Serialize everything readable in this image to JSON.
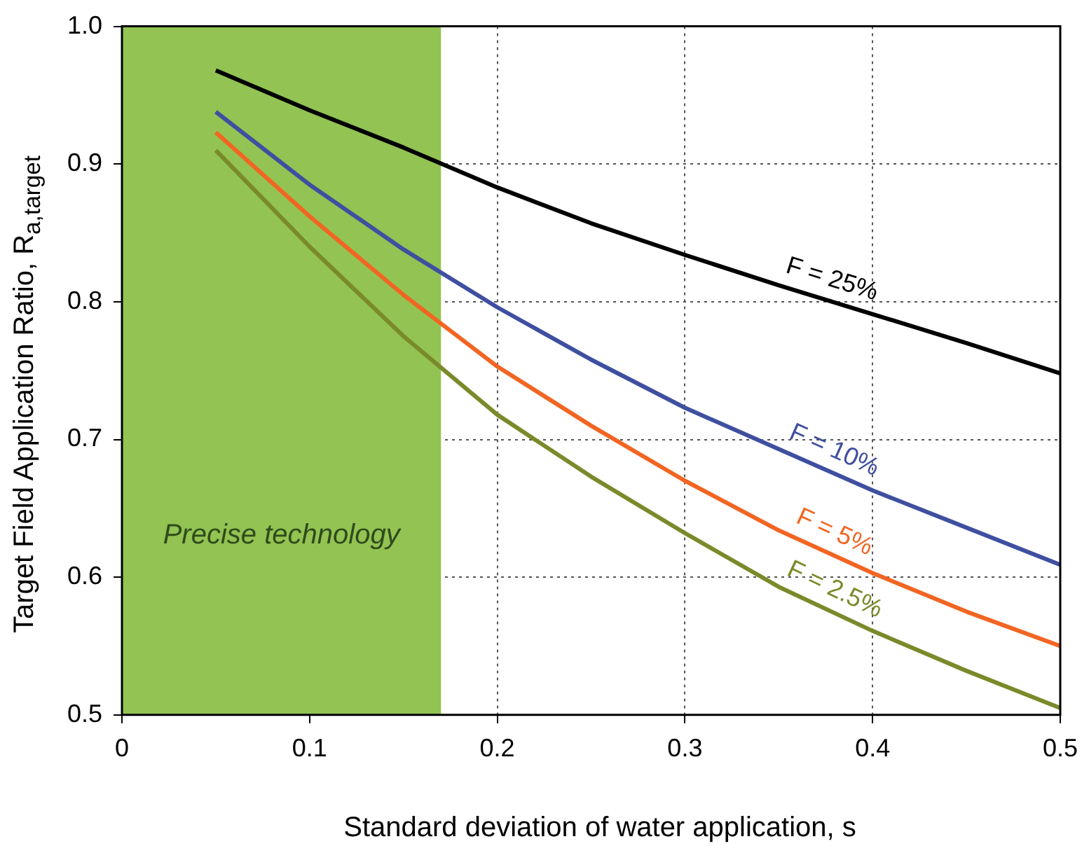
{
  "chart_data": {
    "type": "line",
    "xlabel": "Standard deviation of water application, s",
    "ylabel": "Target Field Application Ratio, R$_{a,target}$",
    "x": [
      0.05,
      0.1,
      0.15,
      0.2,
      0.25,
      0.3,
      0.35,
      0.4,
      0.45,
      0.5
    ],
    "series": [
      {
        "name": "F = 25%",
        "color": "#000000",
        "values": [
          0.968,
          0.939,
          0.912,
          0.883,
          0.857,
          0.834,
          0.812,
          0.791,
          0.77,
          0.748
        ]
      },
      {
        "name": "F = 10%",
        "color": "#3f4fa0",
        "values": [
          0.938,
          0.885,
          0.838,
          0.796,
          0.758,
          0.723,
          0.693,
          0.663,
          0.636,
          0.609
        ]
      },
      {
        "name": "F = 5%",
        "color": "#f26522",
        "values": [
          0.923,
          0.862,
          0.805,
          0.753,
          0.71,
          0.67,
          0.634,
          0.603,
          0.575,
          0.55
        ]
      },
      {
        "name": "F = 2.5%",
        "color": "#7a8a2a",
        "values": [
          0.91,
          0.84,
          0.775,
          0.718,
          0.673,
          0.632,
          0.593,
          0.561,
          0.532,
          0.505
        ]
      }
    ],
    "xlim": [
      0,
      0.5
    ],
    "xticks": [
      0,
      0.1,
      0.2,
      0.3,
      0.4,
      0.5
    ],
    "ylim": [
      0.5,
      1.0
    ],
    "yticks": [
      {
        "value": 0.5,
        "label": "0.5"
      },
      {
        "value": 0.6,
        "label": "0.6"
      },
      {
        "value": 0.7,
        "label": "0.7"
      },
      {
        "value": 0.8,
        "label": "0.8"
      },
      {
        "value": 0.9,
        "label": "0.9"
      },
      {
        "value": 1.0,
        "label": "1.0"
      }
    ],
    "bands": [
      {
        "axis": "x",
        "from": 0,
        "to": 0.17,
        "label": "Precise technology",
        "color": "#92c353"
      }
    ],
    "grid": true,
    "legend": false,
    "marker": "none",
    "line_style": "solid"
  }
}
